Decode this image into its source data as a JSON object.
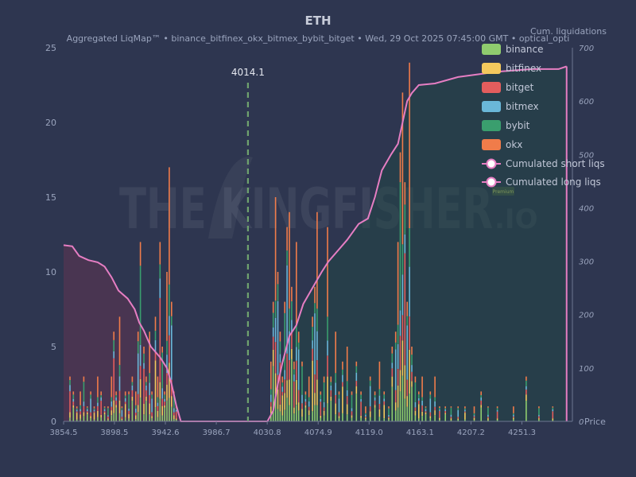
{
  "chart_data": {
    "type": "bar",
    "title": "ETH",
    "subtitle": "Aggregated LiqMap™  •  binance_bitfinex_okx_bitmex_bybit_bitget  •  Wed, 29 Oct 2025 07:45:00 GMT  •  optical_opti",
    "right_axis_label": "Cum. liquidations",
    "x_axis_label": "Price",
    "watermark": {
      "main": "THE KINGFISHER",
      "suffix": ".IO",
      "badge": "Premium"
    },
    "xlim": [
      3854.5,
      4295.0
    ],
    "ylim": [
      0,
      25
    ],
    "y2lim": [
      0,
      700
    ],
    "x_ticks": [
      3854.5,
      3898.5,
      3942.6,
      3986.7,
      4030.8,
      4074.9,
      4119.0,
      4163.1,
      4207.2,
      4251.3
    ],
    "y_ticks": [
      0,
      5,
      10,
      15,
      20,
      25
    ],
    "y2_ticks": [
      0,
      100,
      200,
      300,
      400,
      500,
      600,
      700
    ],
    "current_price": {
      "value": 4014.1,
      "label": "4014.1",
      "color": "#6fa36f"
    },
    "legend_placement": "top-right",
    "grid": false,
    "exchanges": [
      {
        "name": "binance",
        "color": "#8fcc6e"
      },
      {
        "name": "bitfinex",
        "color": "#f4c95d"
      },
      {
        "name": "bitget",
        "color": "#e35d5d"
      },
      {
        "name": "bitmex",
        "color": "#6ab7d8"
      },
      {
        "name": "bybit",
        "color": "#3a9e6e"
      },
      {
        "name": "okx",
        "color": "#f07c4a"
      }
    ],
    "cumulative_series": [
      {
        "name": "Cumulated short liqs",
        "color": "#e67ec3"
      },
      {
        "name": "Cumulated long liqs",
        "color": "#e67ec3"
      }
    ],
    "bars": [
      [
        3860,
        3.0,
        2
      ],
      [
        3863,
        2.0,
        0
      ],
      [
        3866,
        1.0,
        1
      ],
      [
        3869,
        2.0,
        5
      ],
      [
        3872,
        3.0,
        4
      ],
      [
        3875,
        1.0,
        0
      ],
      [
        3878,
        2.0,
        3
      ],
      [
        3881,
        1.0,
        1
      ],
      [
        3884,
        3.0,
        5
      ],
      [
        3887,
        2.0,
        2
      ],
      [
        3890,
        1.0,
        0
      ],
      [
        3893,
        1.0,
        4
      ],
      [
        3896,
        3.0,
        5
      ],
      [
        3898,
        6.0,
        2
      ],
      [
        3900,
        2.0,
        0
      ],
      [
        3903,
        7.0,
        5
      ],
      [
        3905,
        1.0,
        3
      ],
      [
        3908,
        2.0,
        1
      ],
      [
        3911,
        2.0,
        4
      ],
      [
        3914,
        3.0,
        0
      ],
      [
        3917,
        2.0,
        5
      ],
      [
        3919,
        6.0,
        3
      ],
      [
        3921,
        12.0,
        4
      ],
      [
        3924,
        5.0,
        2
      ],
      [
        3926,
        3.0,
        0
      ],
      [
        3929,
        6.0,
        5
      ],
      [
        3931,
        2.0,
        3
      ],
      [
        3934,
        7.0,
        1
      ],
      [
        3936,
        3.0,
        5
      ],
      [
        3938,
        12.0,
        2
      ],
      [
        3940,
        5.0,
        4
      ],
      [
        3942,
        2.0,
        0
      ],
      [
        3944,
        10.0,
        5
      ],
      [
        3946,
        17.0,
        5
      ],
      [
        3948,
        8.0,
        3
      ],
      [
        3950,
        2.0,
        4
      ],
      [
        3952,
        1.0,
        2
      ],
      [
        4034,
        4.0,
        5
      ],
      [
        4036,
        8.0,
        0
      ],
      [
        4038,
        15.0,
        5
      ],
      [
        4040,
        10.0,
        3
      ],
      [
        4042,
        6.0,
        2
      ],
      [
        4044,
        3.0,
        1
      ],
      [
        4046,
        8.0,
        4
      ],
      [
        4048,
        13.0,
        3
      ],
      [
        4050,
        14.0,
        5
      ],
      [
        4052,
        9.0,
        0
      ],
      [
        4054,
        4.0,
        2
      ],
      [
        4056,
        12.0,
        5
      ],
      [
        4058,
        6.0,
        3
      ],
      [
        4061,
        4.0,
        4
      ],
      [
        4064,
        2.0,
        0
      ],
      [
        4067,
        3.0,
        5
      ],
      [
        4070,
        7.0,
        1
      ],
      [
        4072,
        9.0,
        3
      ],
      [
        4074,
        14.0,
        5
      ],
      [
        4077,
        2.0,
        2
      ],
      [
        4080,
        3.0,
        4
      ],
      [
        4083,
        13.0,
        5
      ],
      [
        4086,
        3.0,
        0
      ],
      [
        4090,
        6.0,
        5
      ],
      [
        4093,
        2.0,
        3
      ],
      [
        4096,
        4.0,
        1
      ],
      [
        4100,
        5.0,
        5
      ],
      [
        4104,
        2.0,
        4
      ],
      [
        4108,
        4.0,
        0
      ],
      [
        4112,
        2.0,
        2
      ],
      [
        4116,
        1.0,
        5
      ],
      [
        4120,
        3.0,
        3
      ],
      [
        4124,
        2.0,
        0
      ],
      [
        4128,
        4.0,
        5
      ],
      [
        4132,
        2.0,
        1
      ],
      [
        4136,
        1.0,
        4
      ],
      [
        4139,
        5.0,
        0
      ],
      [
        4142,
        6.0,
        3
      ],
      [
        4144,
        12.0,
        5
      ],
      [
        4146,
        18.0,
        4
      ],
      [
        4148,
        22.0,
        5
      ],
      [
        4150,
        16.0,
        2
      ],
      [
        4152,
        8.0,
        3
      ],
      [
        4154,
        24.0,
        5
      ],
      [
        4156,
        5.0,
        0
      ],
      [
        4159,
        3.0,
        4
      ],
      [
        4162,
        2.0,
        1
      ],
      [
        4165,
        3.0,
        5
      ],
      [
        4168,
        1.0,
        0
      ],
      [
        4172,
        2.0,
        3
      ],
      [
        4176,
        3.0,
        5
      ],
      [
        4180,
        1.0,
        2
      ],
      [
        4185,
        1.0,
        0
      ],
      [
        4190,
        1.0,
        4
      ],
      [
        4196,
        1.0,
        3
      ],
      [
        4202,
        1.0,
        1
      ],
      [
        4210,
        1.0,
        5
      ],
      [
        4216,
        2.0,
        0
      ],
      [
        4222,
        1.0,
        4
      ],
      [
        4230,
        1.0,
        2
      ],
      [
        4244,
        1.0,
        5
      ],
      [
        4255,
        3.0,
        0
      ],
      [
        4266,
        1.0,
        4
      ],
      [
        4278,
        1.0,
        2
      ]
    ],
    "short_cum": [
      [
        3854.5,
        330
      ],
      [
        3862,
        328
      ],
      [
        3868,
        310
      ],
      [
        3876,
        302
      ],
      [
        3884,
        298
      ],
      [
        3890,
        290
      ],
      [
        3896,
        270
      ],
      [
        3902,
        245
      ],
      [
        3910,
        230
      ],
      [
        3916,
        210
      ],
      [
        3920,
        185
      ],
      [
        3924,
        170
      ],
      [
        3930,
        140
      ],
      [
        3938,
        120
      ],
      [
        3944,
        100
      ],
      [
        3948,
        70
      ],
      [
        3952,
        30
      ],
      [
        3956,
        0
      ],
      [
        4010,
        0
      ]
    ],
    "long_cum": [
      [
        4000,
        0
      ],
      [
        4031,
        0
      ],
      [
        4036,
        20
      ],
      [
        4040,
        70
      ],
      [
        4044,
        110
      ],
      [
        4050,
        160
      ],
      [
        4056,
        180
      ],
      [
        4062,
        220
      ],
      [
        4070,
        250
      ],
      [
        4078,
        280
      ],
      [
        4084,
        300
      ],
      [
        4092,
        320
      ],
      [
        4100,
        340
      ],
      [
        4110,
        370
      ],
      [
        4118,
        380
      ],
      [
        4124,
        420
      ],
      [
        4130,
        470
      ],
      [
        4138,
        500
      ],
      [
        4144,
        520
      ],
      [
        4148,
        560
      ],
      [
        4152,
        600
      ],
      [
        4156,
        615
      ],
      [
        4162,
        630
      ],
      [
        4176,
        633
      ],
      [
        4196,
        645
      ],
      [
        4230,
        655
      ],
      [
        4260,
        660
      ],
      [
        4283,
        660
      ],
      [
        4290,
        665
      ]
    ]
  }
}
